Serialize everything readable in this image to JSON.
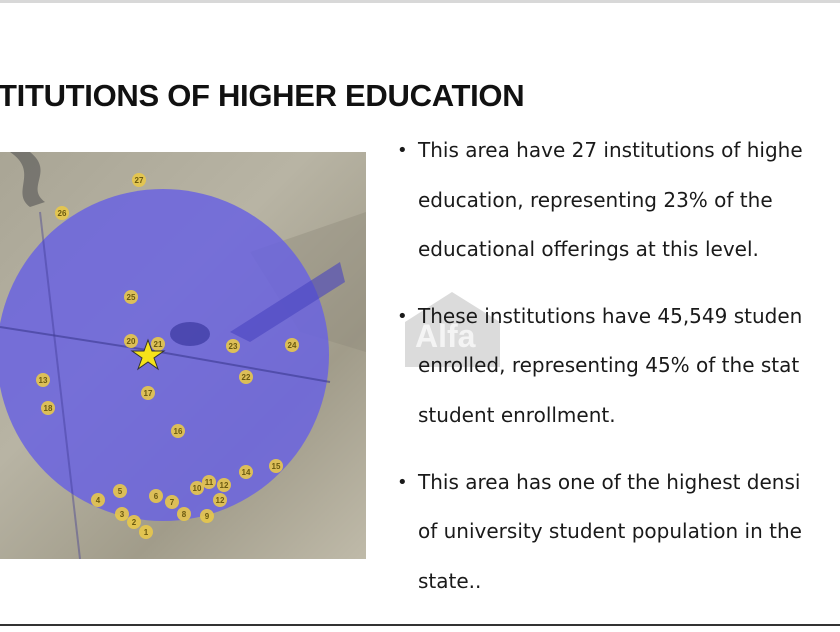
{
  "slide": {
    "title": "TITUTIONS OF HIGHER EDUCATION",
    "bullets": [
      {
        "lines": [
          "This area have 27 institutions of highe",
          "education, representing 23% of the",
          "educational offerings at this level."
        ]
      },
      {
        "lines": [
          "These institutions have 45,549 studen",
          "enrolled, representing 45% of the stat",
          "student enrollment."
        ]
      },
      {
        "lines": [
          "This area has one of the highest densi",
          "of university student population in the",
          "state.."
        ]
      }
    ],
    "watermark": "Alfa"
  },
  "map": {
    "circle_color": "#6a63e0",
    "marker_color": "#e8c84a",
    "star_color": "#f5e21a",
    "markers": [
      "27",
      "26",
      "25",
      "20",
      "21",
      "23",
      "24",
      "22",
      "17",
      "13",
      "18",
      "16",
      "15",
      "14",
      "10",
      "11",
      "12",
      "5",
      "4",
      "6",
      "7",
      "12",
      "8",
      "9",
      "3",
      "2",
      "1"
    ]
  }
}
